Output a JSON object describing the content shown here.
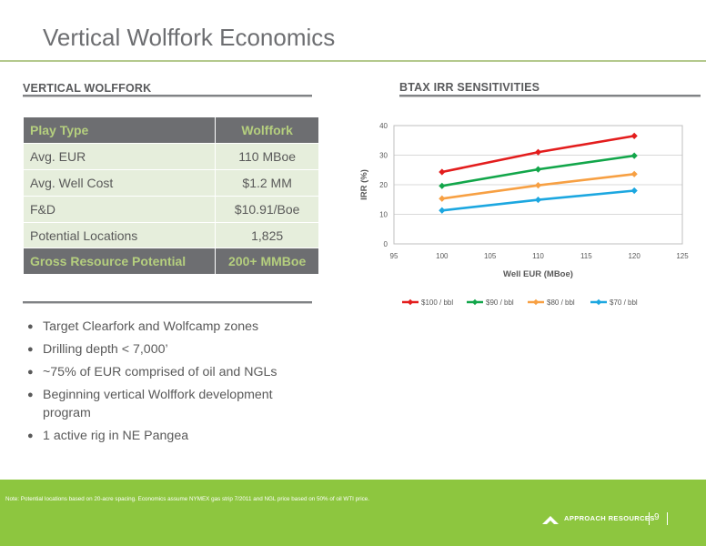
{
  "title": "Vertical Wolffork Economics",
  "left_section": {
    "heading": "VERTICAL WOLFFORK"
  },
  "right_section": {
    "heading": "BTAX IRR SENSITIVITIES"
  },
  "table": {
    "header": [
      "Play Type",
      "Wolffork"
    ],
    "rows": [
      [
        "Avg. EUR",
        "110 MBoe"
      ],
      [
        "Avg. Well Cost",
        "$1.2 MM"
      ],
      [
        "F&D",
        "$10.91/Boe"
      ],
      [
        "Potential Locations",
        "1,825"
      ]
    ],
    "total": [
      "Gross Resource Potential",
      "200+ MMBoe"
    ]
  },
  "bullets": [
    "Target Clearfork and Wolfcamp zones",
    "Drilling depth < 7,000’",
    "~75% of EUR comprised of oil and NGLs",
    "Beginning vertical Wolffork development program",
    "1 active rig in NE Pangea"
  ],
  "chart_data": {
    "type": "line",
    "title": "",
    "xlabel": "Well EUR (MBoe)",
    "ylabel": "IRR (%)",
    "xlim": [
      95,
      125
    ],
    "ylim": [
      0,
      40
    ],
    "x_ticks": [
      "95",
      "100",
      "105",
      "110",
      "115",
      "120",
      "125"
    ],
    "y_ticks": [
      "0",
      "10",
      "20",
      "30",
      "40"
    ],
    "grid": "horizontal",
    "legend_position": "bottom",
    "x": [
      100,
      110,
      120
    ],
    "series": [
      {
        "name": "$100 / bbl",
        "color": "#e31d1d",
        "values": [
          24.3,
          31,
          36.5
        ]
      },
      {
        "name": "$90 / bbl",
        "color": "#12a64a",
        "values": [
          19.6,
          25.2,
          29.8
        ]
      },
      {
        "name": "$80 / bbl",
        "color": "#f7a043",
        "values": [
          15.3,
          19.8,
          23.6
        ]
      },
      {
        "name": "$70 / bbl",
        "color": "#1ca7e0",
        "values": [
          11.3,
          14.9,
          18
        ]
      }
    ]
  },
  "footer": {
    "note": "Note: Potential locations based on 20-acre spacing. Economics assume NYMEX gas strip 7/2011 and NGL price based on 50% of oil WTI price.",
    "company": "APPROACH RESOURCES",
    "page": "9"
  }
}
